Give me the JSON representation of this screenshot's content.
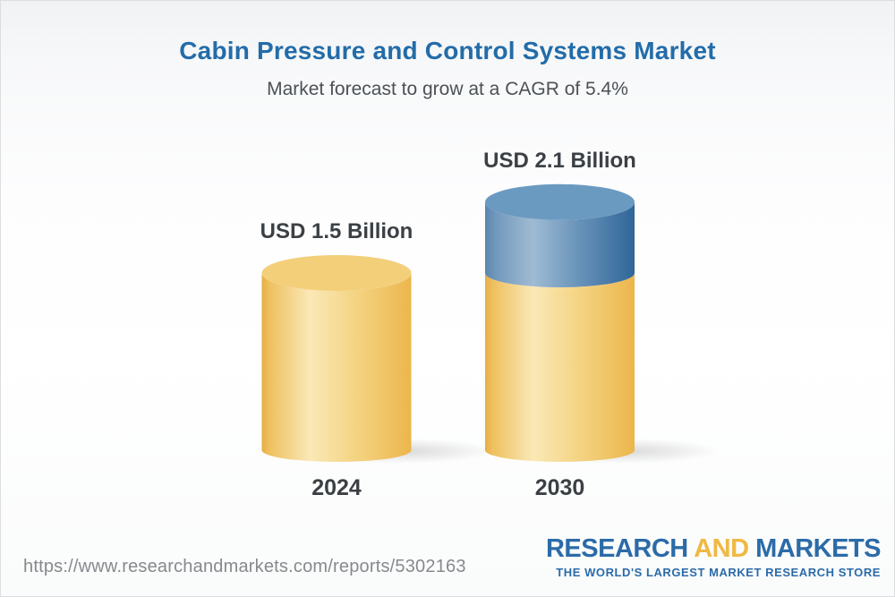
{
  "header": {
    "title": "Cabin Pressure and Control Systems Market",
    "subtitle": "Market forecast to grow at a CAGR of 5.4%",
    "title_color": "#236ca9"
  },
  "chart_data": {
    "type": "bar",
    "style": "3d-cylinder",
    "title": "Cabin Pressure and Control Systems Market",
    "subtitle": "Market forecast to grow at a CAGR of 5.4%",
    "cagr_percent": 5.4,
    "unit": "USD Billion",
    "categories": [
      "2024",
      "2030"
    ],
    "values": [
      1.5,
      2.1
    ],
    "value_labels": [
      "USD 1.5 Billion",
      "USD 2.1 Billion"
    ],
    "series": [
      {
        "name": "base-gold",
        "color_key": "gold",
        "values": [
          1.5,
          1.5
        ]
      },
      {
        "name": "growth-blue",
        "color_key": "blue",
        "values": [
          0,
          0.6
        ]
      }
    ],
    "axis": {
      "grid": false,
      "y_baseline": 0
    },
    "colors": {
      "gold": {
        "top": "#f3cf7a",
        "side_stops": [
          [
            0,
            "#e7ae43"
          ],
          [
            0.05,
            "#eec05f"
          ],
          [
            0.32,
            "#fae8b6"
          ],
          [
            0.6,
            "#f5d688"
          ],
          [
            1,
            "#ecb64b"
          ]
        ]
      },
      "blue": {
        "top": "#6b9ac1",
        "side_stops": [
          [
            0,
            "#5885ae"
          ],
          [
            0.07,
            "#7198bc"
          ],
          [
            0.32,
            "#9fbbd3"
          ],
          [
            0.62,
            "#6994ba"
          ],
          [
            1,
            "#2f6698"
          ]
        ]
      }
    },
    "label_color": "#3b4044"
  },
  "footer": {
    "url": "https://www.researchandmarkets.com/reports/5302163",
    "logo": {
      "word1": "RESEARCH",
      "word2": "AND",
      "word3": "MARKETS",
      "tagline": "THE WORLD'S LARGEST MARKET RESEARCH STORE",
      "blue": "#2b6ba8",
      "gold": "#f0b843"
    }
  }
}
